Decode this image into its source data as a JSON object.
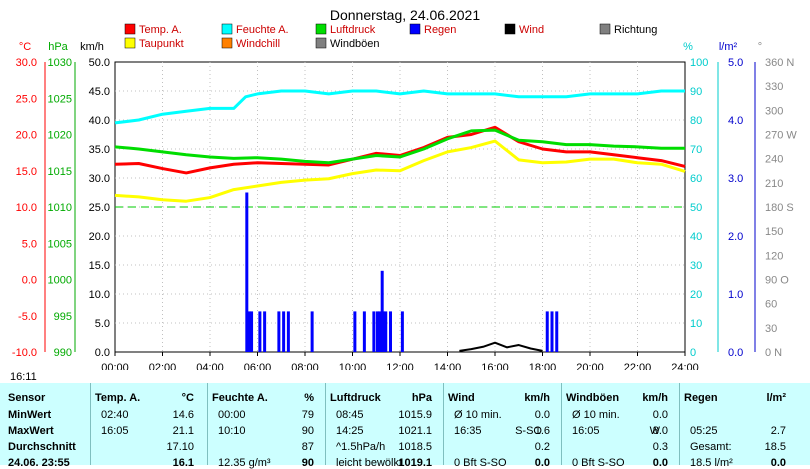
{
  "chart_data": {
    "type": "line",
    "title": "Donnerstag, 24.06.2021",
    "x_ticks": [
      "00:00",
      "02:00",
      "04:00",
      "06:00",
      "08:00",
      "10:00",
      "12:00",
      "14:00",
      "16:00",
      "18:00",
      "20:00",
      "22:00",
      "24:00"
    ],
    "axes": {
      "temp": {
        "unit": "°C",
        "ticks": [
          "30.0",
          "25.0",
          "20.0",
          "15.0",
          "10.0",
          "5.0",
          "0.0",
          "-5.0",
          "-10.0"
        ],
        "color": "#ff0000"
      },
      "press": {
        "unit": "hPa",
        "ticks": [
          "1030",
          "1025",
          "1020",
          "1015",
          "1010",
          "1005",
          "1000",
          "995",
          "990"
        ],
        "color": "#00aa00"
      },
      "wind": {
        "unit": "km/h",
        "ticks": [
          "50.0",
          "45.0",
          "40.0",
          "35.0",
          "30.0",
          "25.0",
          "20.0",
          "15.0",
          "10.0",
          "5.0",
          "0.0"
        ],
        "color": "#000000"
      },
      "hum": {
        "unit": "%",
        "ticks": [
          "100",
          "90",
          "80",
          "70",
          "60",
          "50",
          "40",
          "30",
          "20",
          "10",
          "0"
        ],
        "color": "#00cccc"
      },
      "rain": {
        "unit": "l/m²",
        "ticks": [
          "5.0",
          "4.0",
          "3.0",
          "2.0",
          "1.0",
          "0.0"
        ],
        "color": "#0000cc"
      },
      "dir": {
        "unit": "°",
        "ticks": [
          "360 N",
          "330",
          "300",
          "270 W",
          "240",
          "210",
          "180 S",
          "150",
          "120",
          "90 O",
          "60",
          "30",
          "0 N"
        ],
        "color": "#888888"
      }
    },
    "legend": [
      {
        "name": "Temp. A.",
        "color": "#ff0000"
      },
      {
        "name": "Feuchte A.",
        "color": "#00ffff"
      },
      {
        "name": "Luftdruck",
        "color": "#00dd00"
      },
      {
        "name": "Regen",
        "color": "#0000ff"
      },
      {
        "name": "Wind",
        "color": "#000000"
      },
      {
        "name": "Richtung",
        "color": "#808080"
      },
      {
        "name": "Taupunkt",
        "color": "#ffff00"
      },
      {
        "name": "Windchill",
        "color": "#ff8000"
      },
      {
        "name": "Windböen",
        "color": "#808080"
      }
    ],
    "series": [
      {
        "name": "Temp. A.",
        "axis": "temp",
        "color": "#ff0000",
        "x": [
          0,
          1,
          2,
          3,
          4,
          5,
          6,
          7,
          8,
          9,
          10,
          11,
          12,
          13,
          14,
          15,
          16,
          17,
          18,
          19,
          20,
          21,
          22,
          23,
          24
        ],
        "y": [
          15.9,
          16.0,
          15.3,
          14.7,
          15.4,
          15.9,
          16.1,
          16.0,
          15.9,
          15.8,
          16.6,
          17.4,
          17.1,
          18.2,
          19.6,
          20.0,
          21.0,
          19.0,
          18.0,
          17.6,
          17.6,
          17.2,
          16.8,
          16.4,
          15.6
        ]
      },
      {
        "name": "Feuchte A.",
        "axis": "hum",
        "color": "#00ffff",
        "x": [
          0,
          1,
          2,
          3,
          4,
          5,
          5.5,
          6,
          7,
          8,
          9,
          10,
          11,
          12,
          13,
          14,
          15,
          16,
          17,
          18,
          19,
          20,
          21,
          22,
          23,
          24
        ],
        "y": [
          79,
          80,
          82,
          83,
          84,
          84,
          88,
          89,
          90,
          90,
          89,
          90,
          90,
          89,
          90,
          89,
          89,
          89,
          88,
          88,
          88,
          89,
          89,
          89,
          90,
          90
        ]
      },
      {
        "name": "Luftdruck",
        "axis": "press",
        "color": "#00dd00",
        "x": [
          0,
          1,
          2,
          3,
          4,
          5,
          6,
          7,
          8,
          9,
          10,
          11,
          12,
          13,
          14,
          15,
          16,
          17,
          18,
          19,
          20,
          21,
          22,
          23,
          24
        ],
        "y": [
          1018.3,
          1018.0,
          1017.6,
          1017.2,
          1016.9,
          1016.7,
          1016.8,
          1016.6,
          1016.3,
          1016.1,
          1016.6,
          1017.1,
          1016.9,
          1018.0,
          1019.4,
          1020.5,
          1020.6,
          1019.2,
          1019.0,
          1018.6,
          1018.6,
          1018.4,
          1018.3,
          1018.1,
          1018.1
        ]
      },
      {
        "name": "Taupunkt",
        "axis": "temp",
        "color": "#ffff00",
        "x": [
          0,
          1,
          2,
          3,
          4,
          5,
          6,
          7,
          8,
          9,
          10,
          11,
          12,
          13,
          14,
          15,
          16,
          17,
          18,
          19,
          20,
          21,
          22,
          23,
          24
        ],
        "y": [
          11.6,
          11.4,
          11.0,
          10.8,
          11.3,
          12.4,
          12.9,
          13.4,
          13.7,
          13.9,
          14.6,
          15.1,
          15.0,
          16.4,
          17.6,
          18.2,
          19.1,
          16.5,
          16.1,
          16.2,
          16.6,
          16.6,
          16.1,
          15.9,
          14.9
        ]
      },
      {
        "name": "Regen",
        "axis": "rain",
        "color": "#0000ff",
        "x": [
          5.55,
          5.65,
          5.75,
          6.1,
          6.3,
          6.9,
          7.1,
          7.3,
          8.3,
          10.1,
          10.5,
          10.9,
          11.05,
          11.15,
          11.25,
          11.3,
          11.4,
          11.6,
          12.1,
          18.2,
          18.4,
          18.6
        ],
        "y": [
          2.75,
          0.7,
          0.7,
          0.7,
          0.7,
          0.7,
          0.7,
          0.7,
          0.7,
          0.7,
          0.7,
          0.7,
          0.7,
          0.7,
          1.4,
          0.7,
          0.7,
          0.7,
          0.7,
          0.7,
          0.7,
          0.7
        ]
      },
      {
        "name": "Wind",
        "axis": "wind",
        "color": "#000000",
        "x": [
          14.5,
          15,
          15.5,
          16,
          16.5,
          17,
          17.5,
          18
        ],
        "y": [
          0.2,
          0.5,
          0.9,
          1.6,
          0.8,
          1.2,
          0.6,
          0.2
        ]
      }
    ],
    "reference_line": {
      "axis": "temp",
      "value": 10.0,
      "style": "dashed",
      "color": "#00cc00"
    },
    "grid": true
  },
  "sunrise_label": "16:11",
  "table": {
    "cols": [
      {
        "title": "Sensor",
        "unit": ""
      },
      {
        "title": "Temp. A.",
        "unit": "°C"
      },
      {
        "title": "Feuchte A.",
        "unit": "%"
      },
      {
        "title": "Luftdruck",
        "unit": "hPa"
      },
      {
        "title": "Wind",
        "unit": "km/h"
      },
      {
        "title": "Windböen",
        "unit": "km/h"
      },
      {
        "title": "Regen",
        "unit": "l/m²"
      }
    ],
    "rows": [
      {
        "label": "MinWert",
        "c1a": "02:40",
        "c1b": "14.6",
        "c2a": "00:00",
        "c2b": "79",
        "c3a": "08:45",
        "c3b": "1015.9",
        "c4a": "Ø 10 min.",
        "c4b": "0.0",
        "c5a": "Ø 10 min.",
        "c5b": "0.0",
        "c6a": "",
        "c6b": ""
      },
      {
        "label": "MaxWert",
        "c1a": "16:05",
        "c1b": "21.1",
        "c2a": "10:10",
        "c2b": "90",
        "c3a": "14:25",
        "c3b": "1021.1",
        "c4a": "16:35",
        "c4m": "S-SO",
        "c4b": "1.6",
        "c5a": "16:05",
        "c5m": "W",
        "c5b": "8.0",
        "c6a": "05:25",
        "c6b": "2.7"
      },
      {
        "label": "Durchschnitt",
        "c1a": "",
        "c1b": "17.10",
        "c2a": "",
        "c2b": "87",
        "c3a": "^1.5hPa/h",
        "c3b": "1018.5",
        "c4a": "",
        "c4b": "0.2",
        "c5a": "",
        "c5b": "0.3",
        "c6a": "Gesamt:",
        "c6b": "18.5"
      },
      {
        "label": "24.06. 23:55",
        "c1a": "",
        "c1b": "16.1",
        "c2a": "12.35 g/m³",
        "c2b": "90",
        "c3a": "leicht bewölkt",
        "c3b": "1019.1",
        "c4a": "0 Bft S-SO",
        "c4b": "0.0",
        "c5a": "0 Bft S-SO",
        "c5b": "0.0",
        "c6a": "18.5 l/m²",
        "c6b": "0.0"
      }
    ]
  }
}
